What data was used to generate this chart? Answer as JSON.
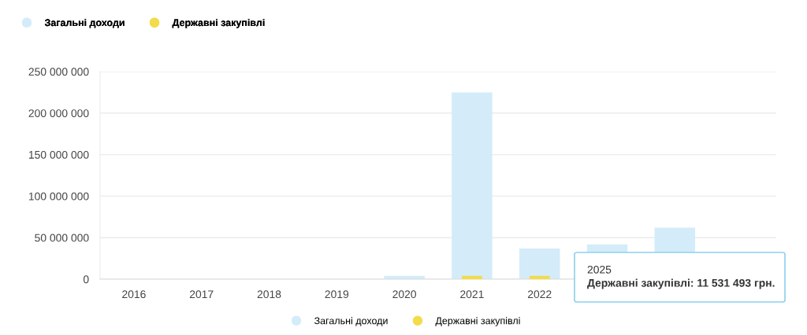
{
  "chart_data": {
    "type": "bar",
    "categories": [
      "2016",
      "2017",
      "2018",
      "2019",
      "2020",
      "2021",
      "2022",
      null,
      null,
      null
    ],
    "series": [
      {
        "name": "Загальні доходи",
        "color": "#d4ecf9",
        "values": [
          0,
          0,
          0,
          0,
          4000000,
          225000000,
          37000000,
          42000000,
          62000000,
          null
        ]
      },
      {
        "name": "Державні закупівлі",
        "color": "#f2dc4a",
        "values": [
          0,
          0,
          0,
          0,
          0,
          4000000,
          4000000,
          null,
          null,
          null
        ]
      }
    ],
    "ylim": [
      0,
      250000000
    ],
    "yticks": [
      {
        "value": 0,
        "label": "0"
      },
      {
        "value": 50000000,
        "label": "50 000 000"
      },
      {
        "value": 100000000,
        "label": "100 000 000"
      },
      {
        "value": 150000000,
        "label": "150 000 000"
      },
      {
        "value": 200000000,
        "label": "200 000 000"
      },
      {
        "value": 250000000,
        "label": "250 000 000"
      }
    ],
    "grid": "y",
    "legend": "bottom",
    "annotations": [
      "2025",
      "Державні закупівлі: 11 531 493 грн."
    ]
  }
}
